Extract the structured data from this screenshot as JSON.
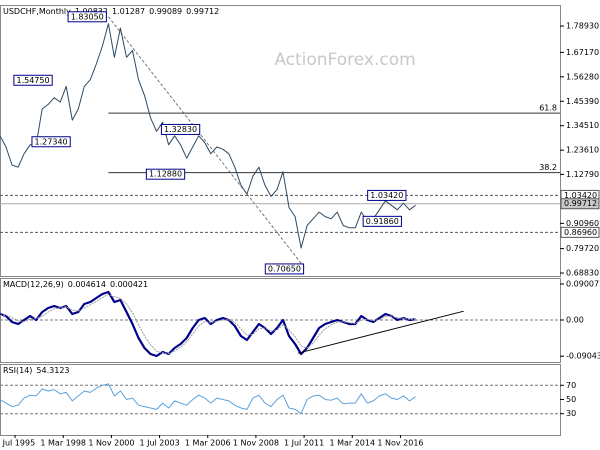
{
  "chart_data": [
    {
      "type": "line",
      "title": "USDCHF,Monthly",
      "header_values": [
        1.00832,
        1.01287,
        0.99089,
        0.99712
      ],
      "watermark": "ActionForex.com",
      "xlim": [
        0,
        93
      ],
      "xticks": [
        {
          "value": 2.5,
          "label": "1 Jul 1995"
        },
        {
          "value": 10.5,
          "label": "1 Mar 1998"
        },
        {
          "value": 18.5,
          "label": "1 Nov 2000"
        },
        {
          "value": 26.5,
          "label": "1 Jul 2003"
        },
        {
          "value": 34.5,
          "label": "1 Mar 2006"
        },
        {
          "value": 42.5,
          "label": "1 Nov 2008"
        },
        {
          "value": 50.5,
          "label": "1 Jul 2011"
        },
        {
          "value": 58.5,
          "label": "1 Mar 2014"
        },
        {
          "value": 66.5,
          "label": "1 Nov 2016"
        }
      ],
      "ylim": [
        0.675,
        1.883
      ],
      "yticks": [
        {
          "value": 1.7893,
          "label": "1.78930"
        },
        {
          "value": 1.6717,
          "label": "1.67170"
        },
        {
          "value": 1.5628,
          "label": "1.56280"
        },
        {
          "value": 1.4539,
          "label": "1.45390"
        },
        {
          "value": 1.3451,
          "label": "1.34510"
        },
        {
          "value": 1.2361,
          "label": "1.23610"
        },
        {
          "value": 1.1279,
          "label": "1.12790"
        },
        {
          "value": 0.9096,
          "label": "0.90960"
        },
        {
          "value": 0.7972,
          "label": "0.79720"
        },
        {
          "value": 0.6883,
          "label": "0.68830"
        }
      ],
      "series": [
        {
          "name": "USDCHF",
          "color": "#2e4a62",
          "values": [
            1.3,
            1.25,
            1.17,
            1.16,
            1.22,
            1.26,
            1.26,
            1.42,
            1.44,
            1.47,
            1.45,
            1.52,
            1.37,
            1.42,
            1.52,
            1.55,
            1.62,
            1.7,
            1.8,
            1.65,
            1.78,
            1.65,
            1.68,
            1.55,
            1.48,
            1.38,
            1.32,
            1.36,
            1.26,
            1.3,
            1.26,
            1.2,
            1.25,
            1.3,
            1.27,
            1.22,
            1.25,
            1.24,
            1.22,
            1.16,
            1.08,
            1.04,
            1.12,
            1.16,
            1.08,
            1.03,
            1.06,
            1.14,
            0.98,
            0.94,
            0.8,
            0.9,
            0.93,
            0.96,
            0.94,
            0.93,
            0.96,
            0.9,
            0.89,
            0.89,
            0.96,
            0.92,
            0.93,
            0.97,
            1.01,
            0.99,
            0.97,
            1.0,
            0.97,
            0.99
          ]
        }
      ],
      "annotations": [
        {
          "value": 1.8305,
          "label": "1.83050",
          "x": 18
        },
        {
          "value": 1.5475,
          "label": "1.54750",
          "x": 9
        },
        {
          "value": 1.2734,
          "label": "1.27340",
          "x": 12
        },
        {
          "value": 1.3283,
          "label": "1.32830",
          "x": 33.5
        },
        {
          "value": 1.1288,
          "label": "1.12880",
          "x": 31
        },
        {
          "value": 0.7065,
          "label": "0.70650",
          "x": 50.75
        },
        {
          "value": 1.0342,
          "label": "1.03420",
          "x": 67.75
        },
        {
          "value": 0.9186,
          "label": "0.91860",
          "x": 67
        }
      ],
      "fibonacci": [
        61.8,
        38.2
      ],
      "price_lines": [
        {
          "value": 1.0342,
          "label": "1.03420",
          "style": "dashed"
        },
        {
          "value": 0.99712,
          "label": "0.99712",
          "style": "current"
        },
        {
          "value": 0.8696,
          "label": "0.86960",
          "style": "dashed"
        }
      ]
    },
    {
      "type": "line",
      "title": "MACD(12,26,9)",
      "header_values": [
        0.004614,
        0.000421
      ],
      "ylim": [
        -0.105,
        0.105
      ],
      "yticks": [
        0.090072,
        {
          "value": 0,
          "label": "0.00"
        },
        -0.090435
      ],
      "level_lines": [
        0
      ],
      "series": [
        {
          "name": "MACD",
          "color": "#00008b",
          "values": [
            0.015,
            0.01,
            -0.005,
            -0.01,
            0.0,
            0.01,
            0.0,
            0.02,
            0.03,
            0.035,
            0.03,
            0.035,
            0.015,
            0.02,
            0.04,
            0.045,
            0.055,
            0.065,
            0.07,
            0.045,
            0.05,
            0.02,
            -0.01,
            -0.045,
            -0.07,
            -0.085,
            -0.09,
            -0.08,
            -0.085,
            -0.07,
            -0.06,
            -0.045,
            -0.02,
            0.0,
            0.005,
            -0.01,
            0.0,
            0.005,
            0.0,
            -0.015,
            -0.04,
            -0.05,
            -0.03,
            -0.01,
            -0.02,
            -0.035,
            -0.02,
            0.0,
            -0.04,
            -0.06,
            -0.085,
            -0.07,
            -0.045,
            -0.02,
            -0.01,
            -0.005,
            0.0,
            -0.005,
            -0.01,
            -0.01,
            0.01,
            0.0,
            -0.005,
            0.005,
            0.015,
            0.01,
            0.0,
            0.005,
            0.0,
            0.002
          ]
        },
        {
          "name": "Signal",
          "color": "#9a9a9a",
          "values": [
            0.012,
            0.012,
            0.006,
            -0.002,
            -0.004,
            0.002,
            0.003,
            0.01,
            0.02,
            0.028,
            0.031,
            0.033,
            0.025,
            0.022,
            0.03,
            0.038,
            0.046,
            0.056,
            0.064,
            0.058,
            0.054,
            0.04,
            0.018,
            -0.012,
            -0.04,
            -0.062,
            -0.078,
            -0.082,
            -0.084,
            -0.078,
            -0.068,
            -0.055,
            -0.035,
            -0.015,
            -0.004,
            -0.006,
            -0.003,
            0.0,
            0.001,
            -0.006,
            -0.022,
            -0.038,
            -0.036,
            -0.022,
            -0.02,
            -0.028,
            -0.025,
            -0.012,
            -0.024,
            -0.042,
            -0.065,
            -0.07,
            -0.058,
            -0.038,
            -0.022,
            -0.012,
            -0.005,
            -0.004,
            -0.007,
            -0.009,
            0.0,
            0.002,
            -0.002,
            0.001,
            0.009,
            0.01,
            0.005,
            0.004,
            0.002,
            0.002
          ]
        }
      ],
      "trendline": {
        "x": [
          49.5,
          77
        ],
        "values": [
          -0.083,
          0.022
        ]
      }
    },
    {
      "type": "line",
      "title": "RSI(14)",
      "header_values": [
        54.3123
      ],
      "ylim": [
        0,
        100
      ],
      "yticks": [
        70,
        50,
        30
      ],
      "level_lines": [
        70,
        30
      ],
      "series": [
        {
          "name": "RSI",
          "color": "#5ba3e0",
          "values": [
            50,
            45,
            40,
            42,
            52,
            56,
            55,
            65,
            62,
            64,
            58,
            60,
            48,
            55,
            62,
            60,
            66,
            70,
            72,
            55,
            62,
            50,
            52,
            42,
            40,
            38,
            36,
            45,
            38,
            48,
            45,
            42,
            50,
            56,
            52,
            45,
            52,
            50,
            48,
            42,
            38,
            36,
            52,
            56,
            45,
            40,
            50,
            56,
            38,
            36,
            30,
            50,
            55,
            56,
            50,
            49,
            52,
            44,
            45,
            45,
            58,
            45,
            48,
            55,
            58,
            52,
            50,
            55,
            48,
            54
          ]
        }
      ]
    }
  ]
}
